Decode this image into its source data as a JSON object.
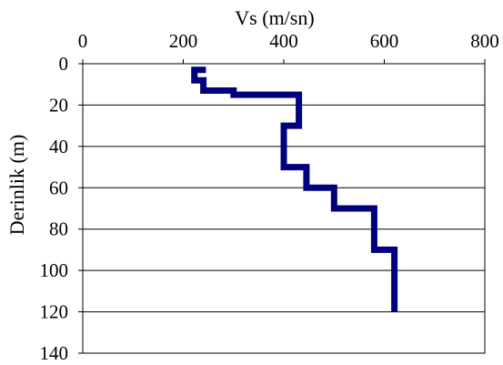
{
  "chart_data": {
    "type": "line",
    "title": "",
    "xlabel": "Vs (m/sn)",
    "ylabel": "Derinlik (m)",
    "xlim": [
      0,
      800
    ],
    "ylim": [
      0,
      140
    ],
    "y_inverted": true,
    "x_axis_position": "top",
    "x_ticks": [
      0,
      200,
      400,
      600,
      800
    ],
    "y_ticks": [
      0,
      20,
      40,
      60,
      80,
      100,
      120,
      140
    ],
    "grid": "horizontal",
    "legend": "none",
    "series": [
      {
        "color": "#00007f",
        "points": [
          {
            "x": 245,
            "y": 3
          },
          {
            "x": 222,
            "y": 3
          },
          {
            "x": 222,
            "y": 8
          },
          {
            "x": 240,
            "y": 8
          },
          {
            "x": 240,
            "y": 13
          },
          {
            "x": 300,
            "y": 13
          },
          {
            "x": 300,
            "y": 15
          },
          {
            "x": 430,
            "y": 15
          },
          {
            "x": 430,
            "y": 30
          },
          {
            "x": 400,
            "y": 30
          },
          {
            "x": 400,
            "y": 50
          },
          {
            "x": 445,
            "y": 50
          },
          {
            "x": 445,
            "y": 60
          },
          {
            "x": 500,
            "y": 60
          },
          {
            "x": 500,
            "y": 70
          },
          {
            "x": 580,
            "y": 70
          },
          {
            "x": 580,
            "y": 90
          },
          {
            "x": 620,
            "y": 90
          },
          {
            "x": 620,
            "y": 120
          }
        ]
      }
    ]
  }
}
